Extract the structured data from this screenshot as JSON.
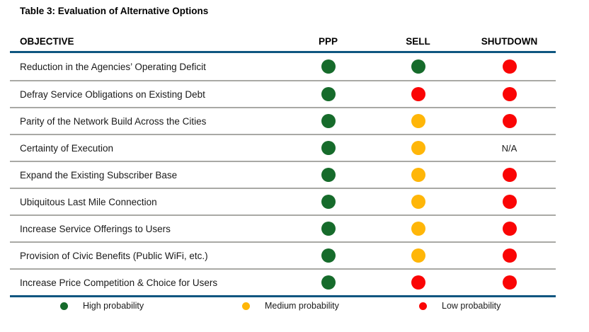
{
  "title": "Table 3: Evaluation of Alternative Options",
  "table": {
    "columns": [
      "OBJECTIVE",
      "PPP",
      "SELL",
      "SHUTDOWN"
    ],
    "na_label": "N/A",
    "rows": [
      {
        "objective": "Reduction in the Agencies’ Operating Deficit",
        "ppp": "green",
        "sell": "green",
        "shutdown": "red"
      },
      {
        "objective": "Defray Service Obligations on Existing Debt",
        "ppp": "green",
        "sell": "red",
        "shutdown": "red"
      },
      {
        "objective": "Parity of the Network Build Across the Cities",
        "ppp": "green",
        "sell": "yellow",
        "shutdown": "red"
      },
      {
        "objective": "Certainty of Execution",
        "ppp": "green",
        "sell": "yellow",
        "shutdown": "na"
      },
      {
        "objective": "Expand the Existing Subscriber Base",
        "ppp": "green",
        "sell": "yellow",
        "shutdown": "red"
      },
      {
        "objective": "Ubiquitous Last Mile Connection",
        "ppp": "green",
        "sell": "yellow",
        "shutdown": "red"
      },
      {
        "objective": "Increase Service Offerings to Users",
        "ppp": "green",
        "sell": "yellow",
        "shutdown": "red"
      },
      {
        "objective": "Provision of Civic Benefits (Public WiFi, etc.)",
        "ppp": "green",
        "sell": "yellow",
        "shutdown": "red"
      },
      {
        "objective": "Increase Price Competition & Choice for Users",
        "ppp": "green",
        "sell": "red",
        "shutdown": "red"
      }
    ]
  },
  "legend": [
    {
      "color": "green",
      "label": "High probability"
    },
    {
      "color": "yellow",
      "label": "Medium probability"
    },
    {
      "color": "red",
      "label": "Low probability"
    }
  ],
  "colors": {
    "green": "#166B2B",
    "yellow": "#FFB608",
    "red": "#FA0505",
    "rule_blue": "#0F5680",
    "rule_gray": "#A9A9A5"
  }
}
